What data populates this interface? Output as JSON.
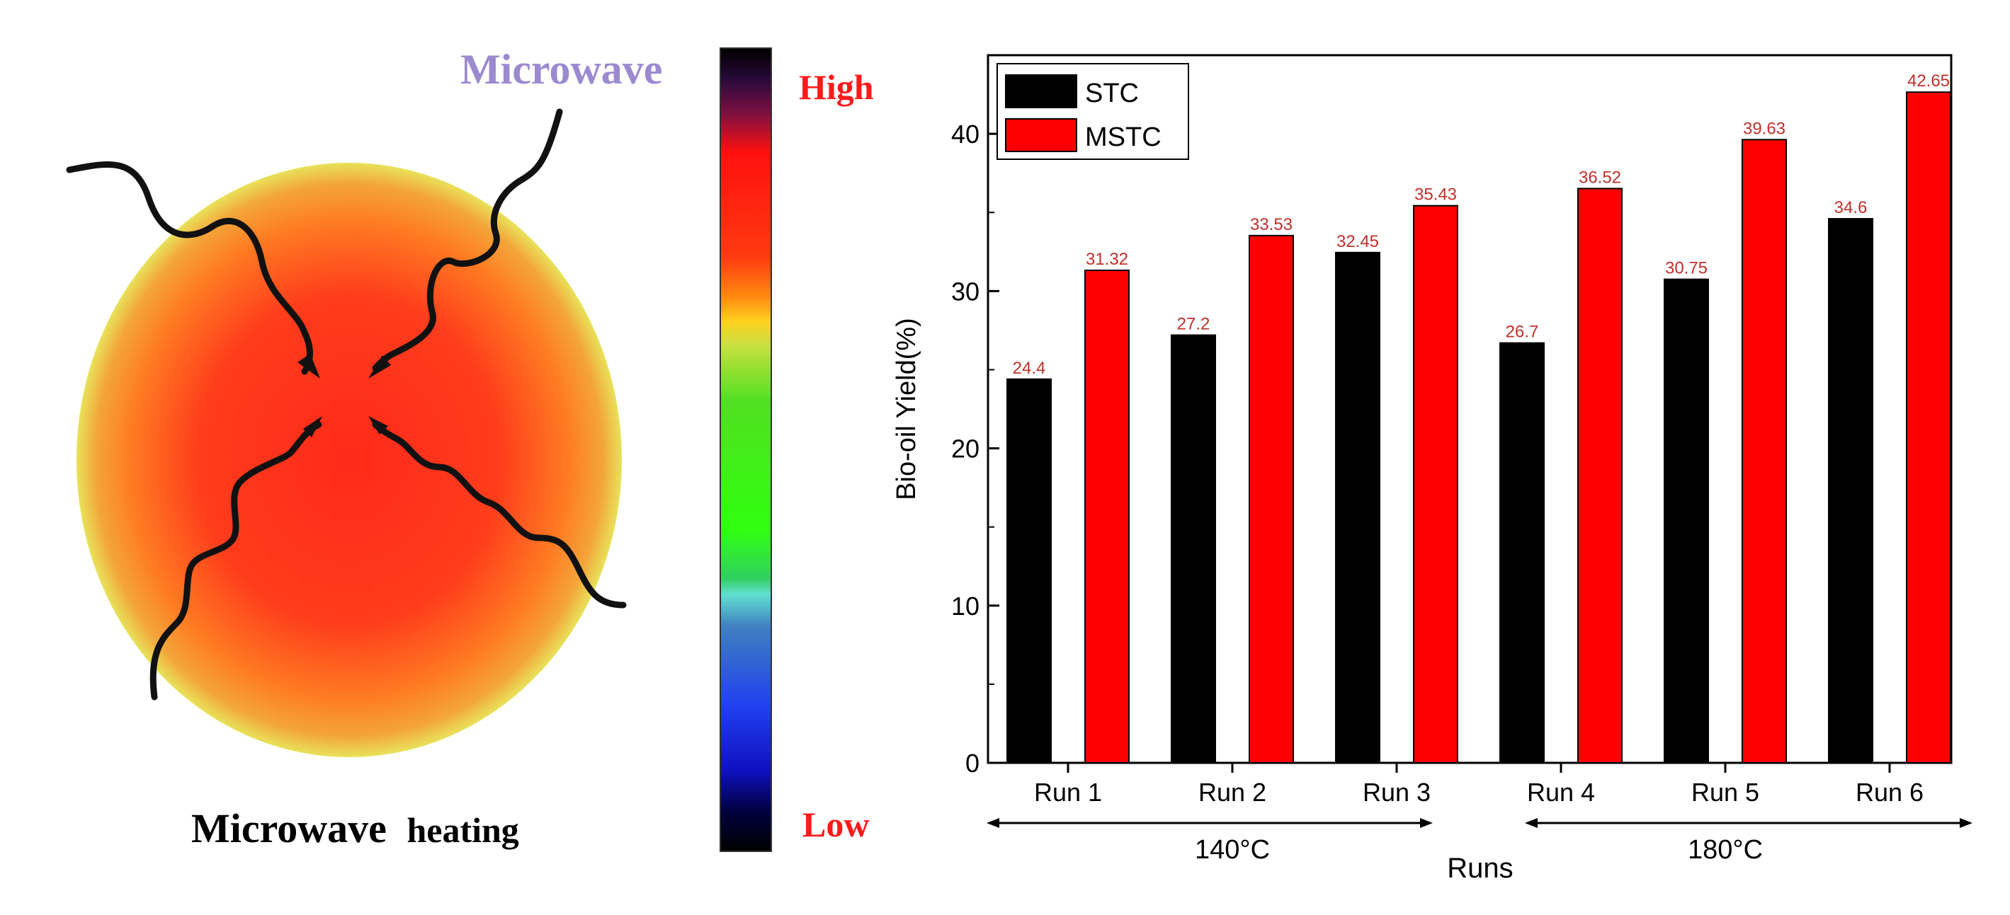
{
  "left_panel": {
    "microwave_label": "Microwave",
    "caption_bold": "Microwave",
    "caption_rest": "heating",
    "scale_high": "High",
    "scale_low": "Low",
    "colors": {
      "microwave_label": "#9b8ad0",
      "scale_text": "#ff1a1a",
      "ball_core": "#ff2a1a",
      "ball_mid": "#ff7a22",
      "ball_edge": "#e8e25a",
      "wave": "#111111"
    }
  },
  "chart_data": {
    "type": "bar",
    "categories": [
      "Run 1",
      "Run 2",
      "Run 3",
      "Run 4",
      "Run 5",
      "Run 6"
    ],
    "series": [
      {
        "name": "STC",
        "color": "#000000",
        "values": [
          24.4,
          27.2,
          32.45,
          26.7,
          30.75,
          34.6
        ],
        "value_labels": [
          "24.4",
          "27.2",
          "32.45",
          "26.7",
          "30.75",
          "34.6"
        ]
      },
      {
        "name": "MSTC",
        "color": "#ff0000",
        "values": [
          31.32,
          33.53,
          35.43,
          36.52,
          39.63,
          42.65
        ],
        "value_labels": [
          "31.32",
          "33.53",
          "35.43",
          "36.52",
          "39.63",
          "42.65"
        ]
      }
    ],
    "xlabel": "Runs",
    "ylabel": "Bio-oil Yield(%)",
    "ylim": [
      0,
      45
    ],
    "yticks": [
      0,
      10,
      20,
      30,
      40
    ],
    "legend_position": "top-left",
    "data_label_color": "#c0302a",
    "groups": [
      {
        "label": "140°C",
        "first": 0,
        "last": 2
      },
      {
        "label": "180°C",
        "first": 3,
        "last": 5
      }
    ]
  }
}
